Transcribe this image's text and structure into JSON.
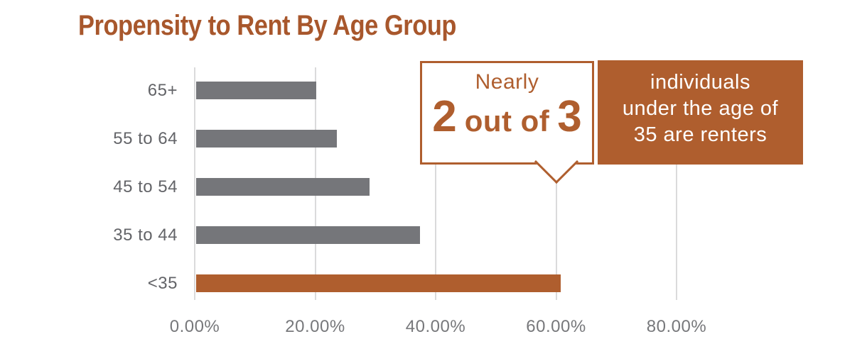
{
  "colors": {
    "accent": "#af5e2e",
    "title": "#a8572c",
    "bar_default": "#75767a",
    "gridline": "#dadadb",
    "axis_label": "#77787b",
    "category_label": "#636468",
    "on_accent": "#ffffff"
  },
  "chart_data": {
    "type": "bar",
    "orientation": "horizontal",
    "title": "Propensity to Rent By Age Group",
    "categories": [
      "65+",
      "55 to 64",
      "45 to 54",
      "35 to 44",
      "<35"
    ],
    "values": [
      20.2,
      23.6,
      29.0,
      37.4,
      60.8
    ],
    "unit": "%",
    "highlight_index": 4,
    "highlight_category": "<35",
    "x_tick_labels": [
      "0.00%",
      "20.00%",
      "40.00%",
      "60.00%",
      "80.00%"
    ],
    "x_tick_values": [
      0,
      20,
      40,
      60,
      80
    ],
    "xlim": [
      0,
      90
    ],
    "grid": "vertical-only",
    "legend": "none"
  },
  "callout": {
    "intro": "Nearly",
    "numerator": "2",
    "connector": "out of",
    "denominator": "3",
    "description_lines": [
      "individuals",
      "under the age of",
      "35 are renters"
    ],
    "points_to_category": "<35"
  }
}
